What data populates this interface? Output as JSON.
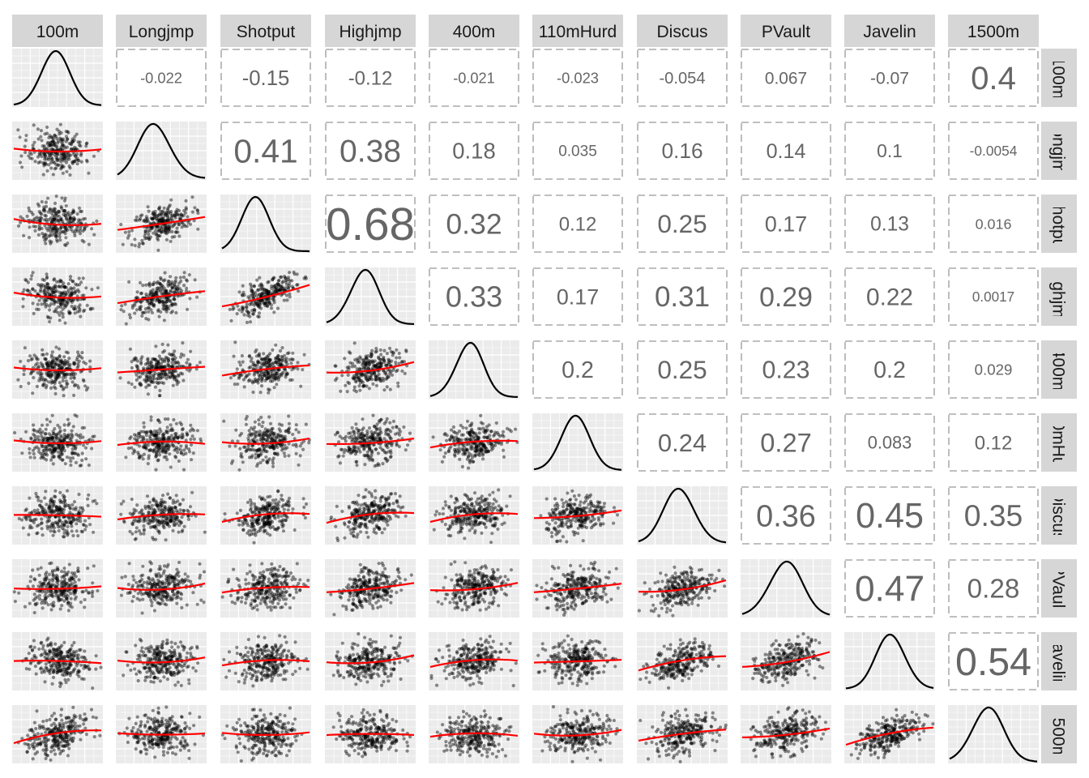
{
  "chart_data": {
    "type": "scatter",
    "variables": [
      "100m",
      "Longjmp",
      "Shotput",
      "Highjmp",
      "400m",
      "110mHurd",
      "Discus",
      "PVault",
      "Javelin",
      "1500m"
    ],
    "row_strip_labels": [
      "100m",
      "Longjmp",
      "Shotput",
      "Highjmp",
      "400m",
      "110mHurd",
      "Discus",
      "PVault",
      "Javelin",
      "1500m"
    ],
    "correlations": [
      [
        "",
        "-0.022",
        "-0.15",
        "-0.12",
        "-0.021",
        "-0.023",
        "-0.054",
        "0.067",
        "-0.07",
        "0.4"
      ],
      [
        "",
        "",
        "0.41",
        "0.38",
        "0.18",
        "0.035",
        "0.16",
        "0.14",
        "0.1",
        "-0.0054"
      ],
      [
        "",
        "",
        "",
        "0.68",
        "0.32",
        "0.12",
        "0.25",
        "0.17",
        "0.13",
        "0.016"
      ],
      [
        "",
        "",
        "",
        "",
        "0.33",
        "0.17",
        "0.31",
        "0.29",
        "0.22",
        "0.0017"
      ],
      [
        "",
        "",
        "",
        "",
        "",
        "0.2",
        "0.25",
        "0.23",
        "0.2",
        "0.029"
      ],
      [
        "",
        "",
        "",
        "",
        "",
        "",
        "0.24",
        "0.27",
        "0.083",
        "0.12"
      ],
      [
        "",
        "",
        "",
        "",
        "",
        "",
        "",
        "0.36",
        "0.45",
        "0.35"
      ],
      [
        "",
        "",
        "",
        "",
        "",
        "",
        "",
        "",
        "0.47",
        "0.28"
      ],
      [
        "",
        "",
        "",
        "",
        "",
        "",
        "",
        "",
        "",
        "0.54"
      ],
      [
        "",
        "",
        "",
        "",
        "",
        "",
        "",
        "",
        "",
        ""
      ]
    ],
    "lower_panels": "scatter with red loess smooth line",
    "diagonal_panels": "density curve",
    "upper_panels": "correlation coefficient text, dashed box, size proportional to |r|",
    "grid": true,
    "colors": {
      "strip_bg": "#d6d6d6",
      "panel_bg": "#ebebeb",
      "grid": "#ffffff",
      "points": "#000000",
      "smooth": "#ff0000",
      "cor_text": "#666666",
      "border": "#999999"
    }
  }
}
